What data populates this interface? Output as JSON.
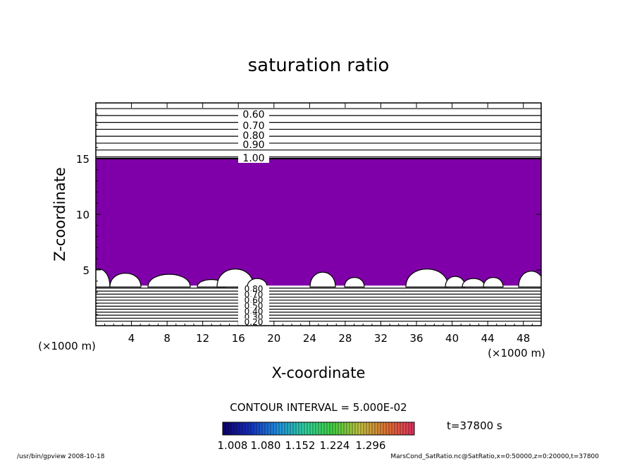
{
  "chart_data": {
    "type": "contour",
    "title": "saturation ratio",
    "xlabel": "X-coordinate",
    "ylabel": "Z-coordinate",
    "x_unit": "(×1000 m)",
    "z_unit": "(×1000 m)",
    "xlim": [
      0,
      50
    ],
    "zlim": [
      0,
      20
    ],
    "x_ticks": [
      4,
      8,
      12,
      16,
      20,
      24,
      28,
      32,
      36,
      40,
      44,
      48
    ],
    "z_ticks": [
      5,
      10,
      15
    ],
    "contour_interval_label": "CONTOUR INTERVAL = 5.000E-02",
    "time_label": "t=37800 s",
    "upper_contour_labels": [
      "0.60",
      "0.70",
      "0.80",
      "0.90",
      "1.00"
    ],
    "lower_contour_labels": [
      "0.80",
      "0.70",
      "0.60",
      "0.50",
      "0.40",
      "0.30",
      "0.20"
    ],
    "supersaturated_region": {
      "z_bottom": 3.6,
      "z_top": 15.0,
      "color": "#7f00a8"
    },
    "colorbar": {
      "ticks": [
        "1.008",
        "1.080",
        "1.152",
        "1.224",
        "1.296"
      ],
      "colors": [
        "#10006a",
        "#1530c0",
        "#2090e0",
        "#30d0a0",
        "#40d040",
        "#c0c040",
        "#e07030",
        "#e03060"
      ]
    },
    "footer_left": "/usr/bin/gpview   2008-10-18",
    "footer_right": "MarsCond_SatRatio.nc@SatRatio,x=0:50000,z=0:20000,t=37800"
  }
}
